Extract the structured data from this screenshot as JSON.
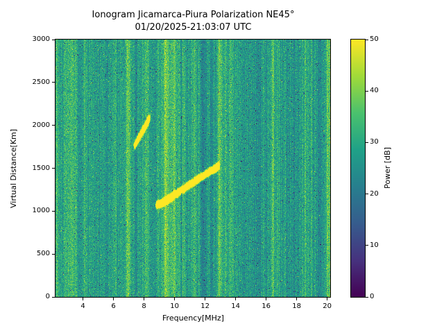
{
  "chart_data": {
    "type": "heatmap",
    "title": "Ionogram Jicamarca-Piura Polarization NE45°",
    "subtitle": "01/20/2025-21:03:07 UTC",
    "xlabel": "Frequency[MHz]",
    "ylabel": "Virtual Distance[Km]",
    "colorbar_label": "Power [dB]",
    "xlim": [
      2.2,
      20.2
    ],
    "ylim": [
      0,
      3000
    ],
    "clim": [
      0,
      50
    ],
    "x_ticks": [
      4,
      6,
      8,
      10,
      12,
      14,
      16,
      18,
      20
    ],
    "y_ticks": [
      0,
      500,
      1000,
      1500,
      2000,
      2500,
      3000
    ],
    "colorbar_ticks": [
      0,
      10,
      20,
      30,
      40,
      50
    ],
    "colormap": "viridis",
    "colormap_stops": [
      "#440154",
      "#46327e",
      "#365c8d",
      "#277f8e",
      "#1fa187",
      "#4ac16d",
      "#a0da39",
      "#fde725"
    ],
    "background": {
      "mean_db": 28.5,
      "noise_amplitude_db": 6.5,
      "speckle_probability": 0.018,
      "speckle_depth_db": 17
    },
    "frequency_bands": [
      {
        "freq": 2.3,
        "width": 0.1,
        "boost_db": 6
      },
      {
        "freq": 2.9,
        "width": 0.12,
        "boost_db": 3
      },
      {
        "freq": 3.35,
        "width": 0.14,
        "boost_db": 5
      },
      {
        "freq": 4.15,
        "width": 0.1,
        "boost_db": 3
      },
      {
        "freq": 5.05,
        "width": 0.08,
        "boost_db": 3
      },
      {
        "freq": 5.6,
        "width": 0.1,
        "boost_db": -4
      },
      {
        "freq": 6.1,
        "width": 0.07,
        "boost_db": 2
      },
      {
        "freq": 6.95,
        "width": 0.08,
        "boost_db": 10
      },
      {
        "freq": 7.5,
        "width": 0.07,
        "boost_db": -5
      },
      {
        "freq": 8.1,
        "width": 0.08,
        "boost_db": 4
      },
      {
        "freq": 8.6,
        "width": 0.09,
        "boost_db": -3
      },
      {
        "freq": 9.45,
        "width": 0.2,
        "boost_db": 11
      },
      {
        "freq": 9.95,
        "width": 0.14,
        "boost_db": 9
      },
      {
        "freq": 10.65,
        "width": 0.08,
        "boost_db": 5
      },
      {
        "freq": 11.3,
        "width": 0.06,
        "boost_db": 4
      },
      {
        "freq": 11.85,
        "width": 0.08,
        "boost_db": -4
      },
      {
        "freq": 12.95,
        "width": 0.08,
        "boost_db": 6
      },
      {
        "freq": 13.8,
        "width": 0.06,
        "boost_db": 3
      },
      {
        "freq": 14.6,
        "width": 0.1,
        "boost_db": -3
      },
      {
        "freq": 15.5,
        "width": 0.08,
        "boost_db": -3
      },
      {
        "freq": 16.45,
        "width": 0.06,
        "boost_db": 6
      },
      {
        "freq": 17.25,
        "width": 0.06,
        "boost_db": 3
      },
      {
        "freq": 17.8,
        "width": 0.07,
        "boost_db": -3
      },
      {
        "freq": 18.55,
        "width": 0.06,
        "boost_db": 3
      },
      {
        "freq": 18.95,
        "width": 0.07,
        "boost_db": 4
      },
      {
        "freq": 19.45,
        "width": 0.05,
        "boost_db": -4
      },
      {
        "freq": 20.1,
        "width": 0.14,
        "boost_db": 8
      }
    ],
    "echo_traces": [
      {
        "name": "main-echo-trace",
        "boost_db": 14,
        "thickness_km": 26,
        "jitter_km": 22,
        "points": [
          [
            8.8,
            1060
          ],
          [
            9.4,
            1120
          ],
          [
            10.0,
            1190
          ],
          [
            10.8,
            1290
          ],
          [
            11.6,
            1390
          ],
          [
            12.3,
            1460
          ],
          [
            12.9,
            1530
          ]
        ]
      },
      {
        "name": "faint-upper-trace",
        "boost_db": 8,
        "thickness_km": 30,
        "jitter_km": 18,
        "points": [
          [
            7.35,
            1760
          ],
          [
            7.85,
            1920
          ],
          [
            8.35,
            2090
          ]
        ]
      }
    ]
  }
}
